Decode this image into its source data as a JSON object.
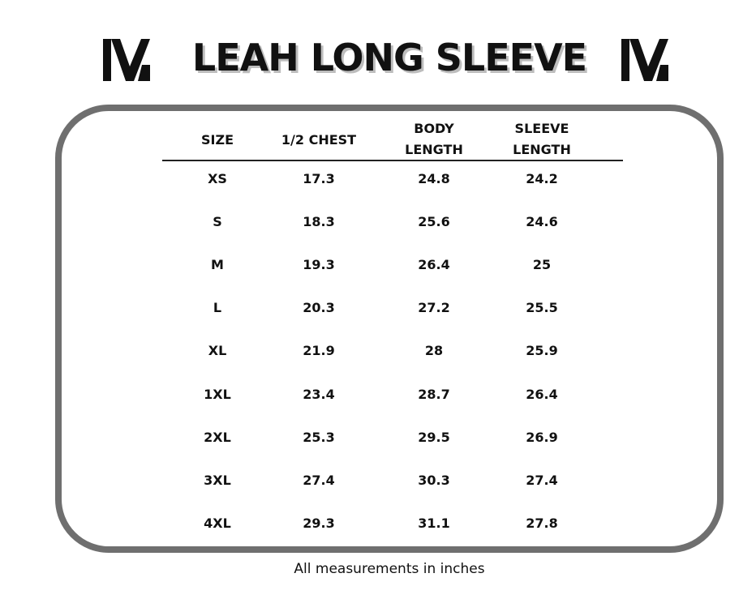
{
  "header": {
    "title": "LEAH LONG SLEEVE"
  },
  "table": {
    "columns": [
      "SIZE",
      "1/2 CHEST",
      "BODY LENGTH",
      "SLEEVE LENGTH"
    ],
    "rows": [
      [
        "XS",
        "17.3",
        "24.8",
        "24.2"
      ],
      [
        "S",
        "18.3",
        "25.6",
        "24.6"
      ],
      [
        "M",
        "19.3",
        "26.4",
        "25"
      ],
      [
        "L",
        "20.3",
        "27.2",
        "25.5"
      ],
      [
        "XL",
        "21.9",
        "28",
        "25.9"
      ],
      [
        "1XL",
        "23.4",
        "28.7",
        "26.4"
      ],
      [
        "2XL",
        "25.3",
        "29.5",
        "26.9"
      ],
      [
        "3XL",
        "27.4",
        "30.3",
        "27.4"
      ],
      [
        "4XL",
        "29.3",
        "31.1",
        "27.8"
      ]
    ]
  },
  "footer": {
    "note": "All measurements in inches"
  }
}
